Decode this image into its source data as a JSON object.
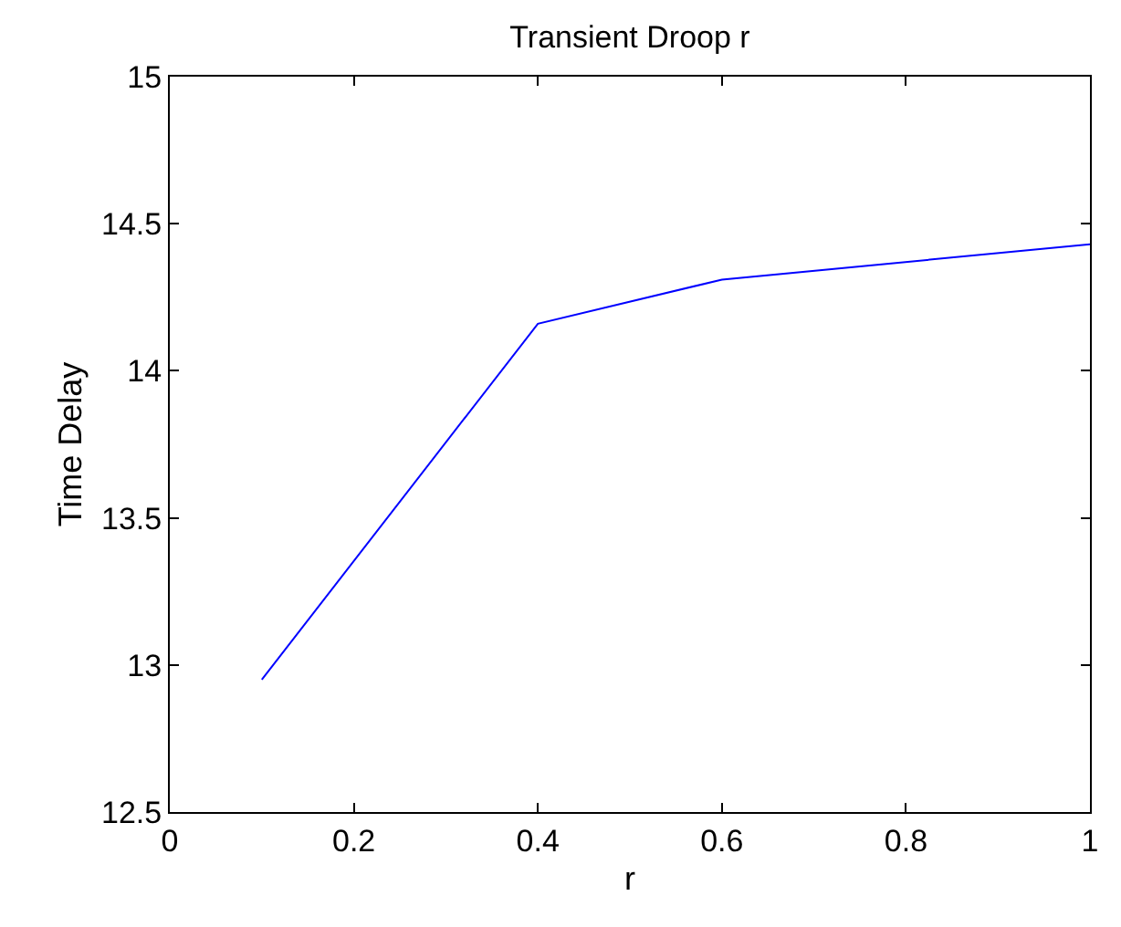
{
  "chart_data": {
    "type": "line",
    "title": "Transient Droop r",
    "xlabel": "r",
    "ylabel": "Time Delay",
    "x": [
      0.1,
      0.4,
      0.6,
      1.0
    ],
    "series": [
      {
        "color": "#0000ff",
        "values": [
          12.95,
          14.16,
          14.31,
          14.43
        ]
      }
    ],
    "xlim": [
      0,
      1
    ],
    "xticks": [
      0,
      0.2,
      0.4,
      0.6,
      0.8,
      1
    ],
    "ylim": [
      12.5,
      15
    ],
    "yticks": [
      12.5,
      13,
      13.5,
      14,
      14.5,
      15
    ],
    "grid": false,
    "marker": "none",
    "line_style": "solid"
  }
}
